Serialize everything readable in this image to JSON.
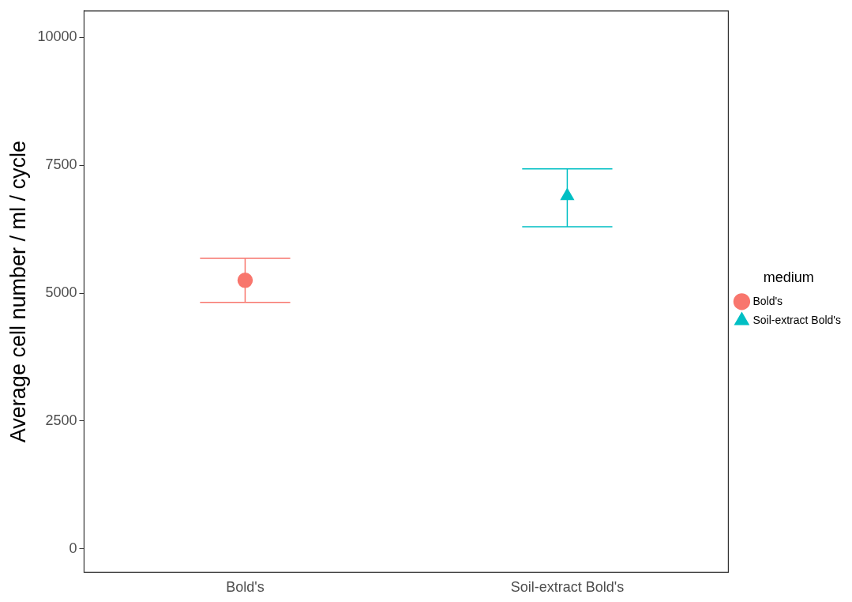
{
  "chart_data": {
    "type": "scatter",
    "ylabel": "Average cell number / ml / cycle",
    "categories": [
      "Bold's",
      "Soil-extract Bold's"
    ],
    "series": [
      {
        "name": "Bold's",
        "color": "#f8766d",
        "values": [
          5250,
          null
        ],
        "errors": [
          [
            4820,
            5680
          ],
          null
        ],
        "marker": "circle"
      },
      {
        "name": "Soil-extract Bold's",
        "color": "#00bfc4",
        "values": [
          null,
          6900
        ],
        "errors": [
          null,
          [
            6300,
            7430
          ]
        ],
        "marker": "triangle"
      }
    ],
    "ylim": [
      -460,
      10520
    ],
    "yticks": [
      0,
      2500,
      5000,
      7500,
      10000
    ],
    "grid": false,
    "legend": "right",
    "legend_title": "medium"
  }
}
